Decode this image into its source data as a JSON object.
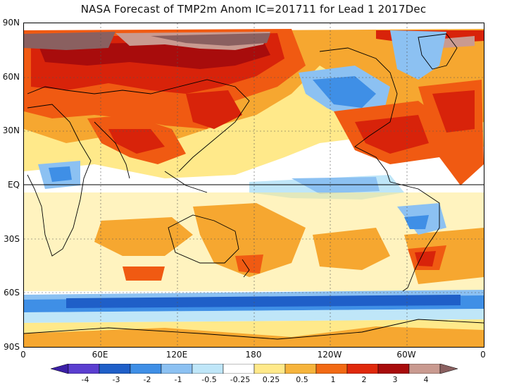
{
  "title": "NASA Forecast of TMP2m Anom IC=201711 for Lead 1 2017Dec",
  "y_axis_labels": [
    "90N",
    "60N",
    "30N",
    "EQ",
    "30S",
    "60S",
    "90S"
  ],
  "x_axis_labels": [
    "0",
    "60E",
    "120E",
    "180",
    "120W",
    "60W",
    "0"
  ],
  "colorbar": {
    "labels": [
      "-4",
      "-3",
      "-2",
      "-1",
      "-0.5",
      "-0.25",
      "0.25",
      "0.5",
      "1",
      "2",
      "3",
      "4"
    ],
    "colors": [
      "#3b1fa6",
      "#5b3ed0",
      "#1f5fc8",
      "#3f8fe6",
      "#8cc1f2",
      "#bfe6f8",
      "#ffffff",
      "#ffe98a",
      "#f6b43c",
      "#f26a14",
      "#e0290c",
      "#a80c0c",
      "#c99a90",
      "#8a6060"
    ]
  },
  "palette": {
    "white": "#ffffff",
    "yellow": "#ffe98a",
    "orange": "#f6a730",
    "red_orange": "#f05a12",
    "red": "#d8230a",
    "dark_red": "#a80c0c",
    "pink_brown": "#c99a90",
    "brown": "#8a6060",
    "pale_blue": "#bfe6f8",
    "light_blue": "#8cc1f2",
    "blue": "#3f8fe6",
    "dark_blue": "#1f5fc8"
  }
}
